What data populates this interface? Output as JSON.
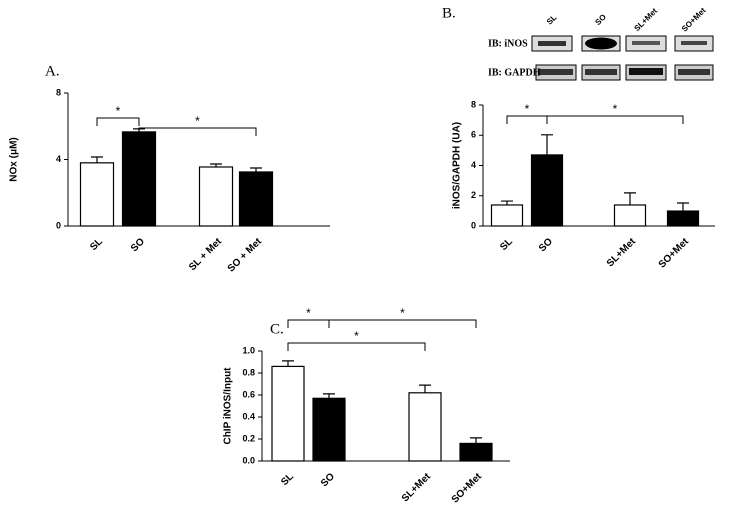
{
  "chart_data": [
    {
      "type": "bar",
      "panel": "A.",
      "ylabel": "NOx (μM)",
      "categories": [
        "SL",
        "SO",
        "SL + Met",
        "SO + Met"
      ],
      "values": [
        3.8,
        5.66,
        3.55,
        3.25
      ],
      "errors": [
        0.35,
        0.18,
        0.18,
        0.24
      ],
      "colors": [
        "#ffffff",
        "#000000",
        "#ffffff",
        "#000000"
      ],
      "ylim": [
        0,
        8
      ],
      "yticks": [
        0,
        4,
        8
      ],
      "annotations": [
        {
          "text": "*",
          "from": 0,
          "to": 1
        },
        {
          "text": "*",
          "from": 1,
          "to": 3
        }
      ]
    },
    {
      "type": "bar",
      "panel": "B.",
      "ylabel": "iNOS/GAPDH (UA)",
      "categories": [
        "SL",
        "SO",
        "SL+Met",
        "SO+Met"
      ],
      "values": [
        1.39,
        4.7,
        1.39,
        0.99
      ],
      "errors": [
        0.26,
        1.33,
        0.8,
        0.53
      ],
      "colors": [
        "#ffffff",
        "#000000",
        "#ffffff",
        "#000000"
      ],
      "ylim": [
        0,
        8
      ],
      "yticks": [
        0,
        2,
        4,
        6,
        8
      ],
      "annotations": [
        {
          "text": "*",
          "from": 0,
          "to": 1
        },
        {
          "text": "*",
          "from": 1,
          "to": 3
        }
      ],
      "blot": {
        "lanes": [
          "SL",
          "SO",
          "SL+Met",
          "SO+Met"
        ],
        "rows": [
          "IB: iNOS",
          "IB: GAPDH"
        ]
      }
    },
    {
      "type": "bar",
      "panel": "C.",
      "ylabel": "ChIP iNOS/Input",
      "categories": [
        "SL",
        "SO",
        "SL+Met",
        "SO+Met"
      ],
      "values": [
        0.86,
        0.57,
        0.62,
        0.16
      ],
      "errors": [
        0.05,
        0.04,
        0.07,
        0.05
      ],
      "colors": [
        "#ffffff",
        "#000000",
        "#ffffff",
        "#000000"
      ],
      "ylim": [
        0,
        1
      ],
      "yticks": [
        {
          "value": 0,
          "label": "0.0"
        },
        0.2,
        0.4,
        0.6,
        0.8,
        {
          "value": 1,
          "label": "1.0"
        }
      ],
      "annotations": [
        {
          "text": "*",
          "from": 0,
          "to": 1
        },
        {
          "text": "*",
          "from": 1,
          "to": 3
        },
        {
          "text": "*",
          "from": 0,
          "to": 2
        }
      ]
    }
  ]
}
